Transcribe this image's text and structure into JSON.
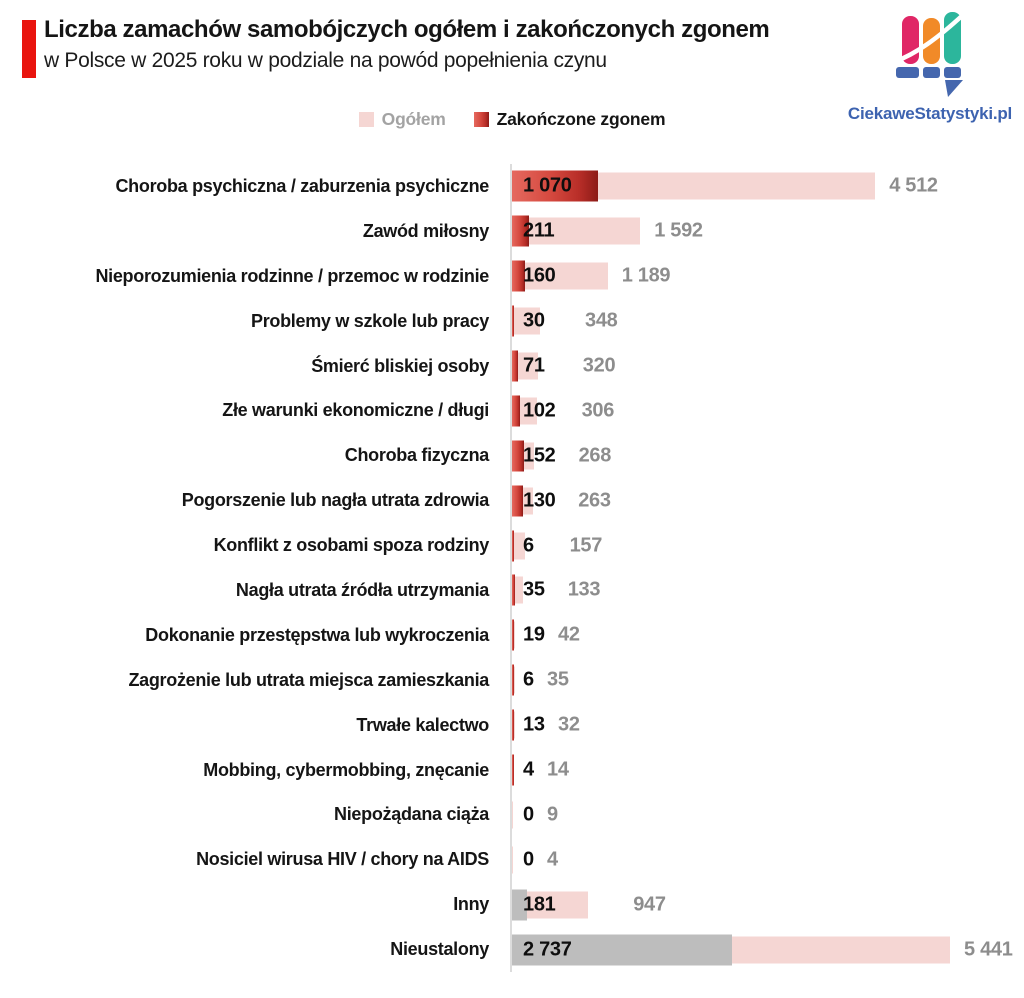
{
  "header": {
    "title": "Liczba zamachów samobójczych ogółem i zakończonych zgonem",
    "subtitle": "w Polsce w 2025 roku w podziale na powód popełnienia czynu",
    "accent_color": "#e9140e",
    "title_color": "#151515"
  },
  "logo": {
    "text": "CiekaweStatystyki.pl",
    "text_color": "#3d63b0",
    "bar_colors": [
      "#e02766",
      "#f18a28",
      "#2cb69c"
    ],
    "base_color": "#4567ae"
  },
  "legend": {
    "items": [
      {
        "label": "Ogółem",
        "swatch_color": "#f5d6d3",
        "text_color": "#a3a3a3"
      },
      {
        "label": "Zakończone zgonem",
        "swatch_color": "#d5493f",
        "text_color": "#151515"
      }
    ]
  },
  "chart_data": {
    "type": "bar",
    "orientation": "horizontal",
    "bar_style": "overlapping",
    "grid": false,
    "legend_position": "top-center",
    "title": "Liczba zamachów samobójczych ogółem i zakończonych zgonem w Polsce w 2025 roku w podziale na powód popełnienia czynu",
    "xlabel": "",
    "ylabel": "",
    "xlim": [
      0,
      5600
    ],
    "number_format": "space-thousands",
    "categories": [
      "Choroba psychiczna / zaburzenia psychiczne",
      "Zawód miłosny",
      "Nieporozumienia rodzinne / przemoc w rodzinie",
      "Problemy w szkole lub pracy",
      "Śmierć bliskiej osoby",
      "Złe warunki ekonomiczne / długi",
      "Choroba fizyczna",
      "Pogorszenie lub nagła utrata zdrowia",
      "Konflikt z osobami spoza rodziny",
      "Nagła utrata źródła utrzymania",
      "Dokonanie przestępstwa lub wykroczenia",
      "Zagrożenie lub utrata miejsca zamieszkania",
      "Trwałe kalectwo",
      "Mobbing, cybermobbing, znęcanie",
      "Niepożądana ciąża",
      "Nosiciel wirusa HIV / chory na AIDS",
      "Inny",
      "Nieustalony"
    ],
    "series": [
      {
        "name": "Ogółem",
        "color": "#f5d6d3",
        "values": [
          4512,
          1592,
          1189,
          348,
          320,
          306,
          268,
          263,
          157,
          133,
          42,
          35,
          32,
          14,
          9,
          4,
          947,
          5441
        ]
      },
      {
        "name": "Zakończone zgonem",
        "gradient": [
          "#e5695f",
          "#d5493f",
          "#b82e28",
          "#8c1b17"
        ],
        "gray_color": "#bdbdbd",
        "values": [
          1070,
          211,
          160,
          30,
          71,
          102,
          152,
          130,
          6,
          35,
          19,
          6,
          13,
          4,
          0,
          0,
          181,
          2737
        ],
        "bar_color_kind": [
          "red",
          "red",
          "red",
          "red",
          "red",
          "red",
          "red",
          "red",
          "red",
          "red",
          "red",
          "red",
          "red",
          "red",
          "red",
          "red",
          "gray",
          "gray"
        ]
      }
    ],
    "value_label_colors": {
      "deaths": "#0e0e0e",
      "totals": "#8d8d8d"
    }
  }
}
